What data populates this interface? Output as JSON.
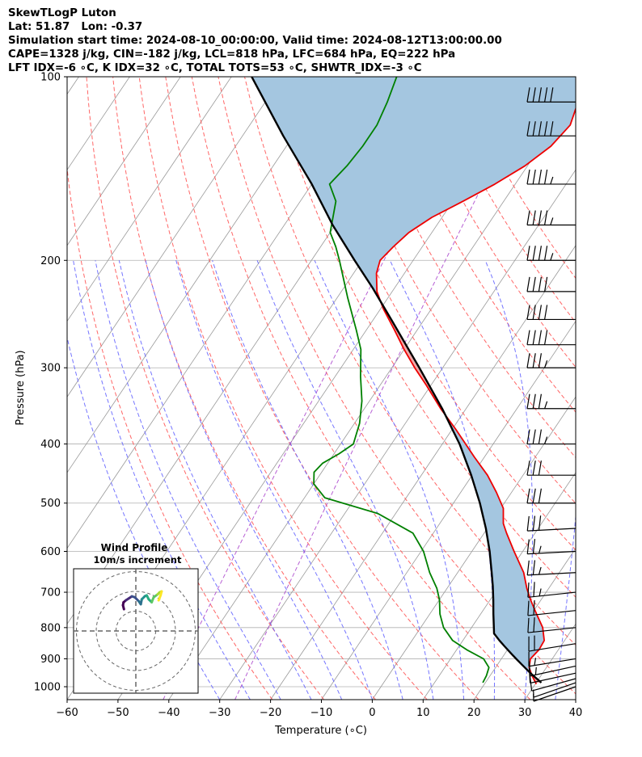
{
  "header": {
    "line1": "SkewTLogP Luton",
    "line2": "Lat: 51.87   Lon: -0.37",
    "line3": "Simulation start time: 2024-08-10_00:00:00, Valid time: 2024-08-12T13:00:00.00",
    "line4": "CAPE=1328 j/kg, CIN=-182 j/kg, LCL=818 hPa, LFC=684 hPa, EQ=222 hPa",
    "line5": "LFT IDX=-6 ∘C, K IDX=32 ∘C, TOTAL TOTS=53 ∘C, SHWTR_IDX=-3 ∘C"
  },
  "chart_data": [
    {
      "type": "line",
      "subtype": "skew-T log-P diagram",
      "xlabel": "Temperature (∘C)",
      "ylabel": "Pressure (hPa)",
      "xlim": [
        -60,
        40
      ],
      "ylim": [
        1050,
        100
      ],
      "y_scale": "log",
      "x_ticks": [
        "−60",
        "−50",
        "−40",
        "−30",
        "−20",
        "−10",
        "0",
        "10",
        "20",
        "30",
        "40"
      ],
      "x_tick_values": [
        -60,
        -50,
        -40,
        -30,
        -20,
        -10,
        0,
        10,
        20,
        30,
        40
      ],
      "y_ticks": [
        100,
        200,
        300,
        400,
        500,
        600,
        700,
        800,
        900,
        1000
      ],
      "grid": true,
      "skew": 35,
      "background_lines": {
        "isotherms": {
          "color": "#999999",
          "style": "solid"
        },
        "dry_adiabats": {
          "color": "#ff5555",
          "style": "dashed",
          "theta_k": [
            250,
            260,
            270,
            280,
            290,
            300,
            310,
            320,
            330,
            340,
            350,
            360,
            370,
            380,
            390,
            400
          ]
        },
        "moist_adiabats": {
          "color": "#6666ff",
          "style": "dashed",
          "start_temp_c": [
            -30,
            -24,
            -18,
            -12,
            -6,
            0,
            6,
            12,
            18,
            24,
            30,
            36,
            42
          ]
        },
        "mixing_ratio": {
          "color": "#aa44cc",
          "style": "dashed"
        }
      },
      "series": [
        {
          "role": "temperature",
          "color": "#ee0000",
          "p": [
            990,
            960,
            930,
            900,
            870,
            840,
            800,
            760,
            720,
            690,
            650,
            600,
            560,
            540,
            510,
            480,
            450,
            420,
            380,
            350,
            320,
            300,
            280,
            260,
            240,
            225,
            210,
            200,
            190,
            180,
            170,
            160,
            150,
            140,
            130,
            120,
            110,
            100
          ],
          "t": [
            30.2,
            28.3,
            26.6,
            25.7,
            26.2,
            26.0,
            24.0,
            21.0,
            17.9,
            15.7,
            13.0,
            8.3,
            4.4,
            2.5,
            0.5,
            -3.0,
            -7.0,
            -12.0,
            -19.0,
            -25.0,
            -31.0,
            -35.5,
            -40.0,
            -44.5,
            -49.5,
            -53.0,
            -55.5,
            -56.5,
            -55.7,
            -54.5,
            -52.0,
            -48.0,
            -44.0,
            -40.5,
            -38.0,
            -37.0,
            -38.5,
            -41.0
          ]
        },
        {
          "role": "dewpoint",
          "color": "#008000",
          "p": [
            985,
            960,
            930,
            900,
            870,
            840,
            800,
            760,
            720,
            690,
            650,
            600,
            560,
            520,
            490,
            465,
            445,
            430,
            415,
            400,
            370,
            340,
            310,
            280,
            260,
            230,
            200,
            190,
            180,
            160,
            150,
            140,
            130,
            120,
            110,
            100
          ],
          "t": [
            19.5,
            19.3,
            18.7,
            16.5,
            12.0,
            8.0,
            4.5,
            2.0,
            0.0,
            -2.0,
            -5.5,
            -9.5,
            -14.0,
            -23.5,
            -36.0,
            -40.0,
            -41.5,
            -41.0,
            -39.0,
            -37.5,
            -39.0,
            -41.5,
            -45.0,
            -48.5,
            -52.0,
            -58.0,
            -64.5,
            -67.0,
            -70.0,
            -73.0,
            -76.5,
            -75.5,
            -75.0,
            -75.0,
            -76.0,
            -77.5
          ]
        },
        {
          "role": "parcel",
          "color": "#000000",
          "p": [
            985,
            950,
            920,
            900,
            880,
            860,
            840,
            818,
            800,
            760,
            720,
            684,
            650,
            600,
            550,
            500,
            450,
            400,
            350,
            300,
            250,
            222,
            200,
            175,
            150,
            125,
            100
          ],
          "t": [
            31.0,
            27.6,
            24.8,
            22.9,
            21.0,
            19.1,
            17.2,
            15.2,
            14.4,
            12.5,
            10.6,
            8.7,
            6.7,
            3.5,
            -0.3,
            -4.8,
            -10.2,
            -16.6,
            -24.7,
            -34.6,
            -46.5,
            -54.3,
            -61.5,
            -70.5,
            -80.0,
            -92.0,
            -106.0
          ]
        }
      ],
      "shading": [
        {
          "meaning": "CIN",
          "color": "#a4c6e0"
        },
        {
          "meaning": "CAPE",
          "color": "#eea8a8"
        }
      ],
      "wind_barbs": {
        "color": "#000000",
        "p": [
          1000,
          985,
          970,
          950,
          925,
          900,
          850,
          800,
          750,
          700,
          650,
          600,
          550,
          500,
          450,
          400,
          350,
          300,
          275,
          250,
          225,
          200,
          175,
          150,
          125,
          110
        ],
        "speed_kt": [
          5,
          5,
          10,
          10,
          15,
          15,
          20,
          20,
          20,
          25,
          25,
          25,
          30,
          30,
          30,
          35,
          35,
          35,
          40,
          40,
          40,
          45,
          45,
          45,
          50,
          50
        ],
        "direction_deg": [
          240,
          240,
          245,
          250,
          250,
          255,
          255,
          260,
          260,
          260,
          265,
          265,
          265,
          270,
          270,
          270,
          270,
          270,
          270,
          270,
          270,
          270,
          270,
          270,
          270,
          270
        ]
      }
    },
    {
      "type": "line",
      "subtype": "hodograph",
      "title": "Wind Profile",
      "subtitle": "10m/s increment",
      "ring_step_ms": 10,
      "rings": 3,
      "colormap": "viridis",
      "u": [
        -6.0,
        -6.5,
        -6.2,
        -5.0,
        -3.5,
        -2.0,
        -0.5,
        1.5,
        2.5,
        3.0,
        4.5,
        5.5,
        6.5,
        8.0,
        9.0,
        11.0,
        12.0,
        13.0,
        12.5,
        11.5
      ],
      "v": [
        11.0,
        13.0,
        14.5,
        15.5,
        16.5,
        17.5,
        17.0,
        15.0,
        13.5,
        16.0,
        17.5,
        18.0,
        16.0,
        14.5,
        17.0,
        18.5,
        19.5,
        20.0,
        18.0,
        15.5
      ]
    }
  ]
}
